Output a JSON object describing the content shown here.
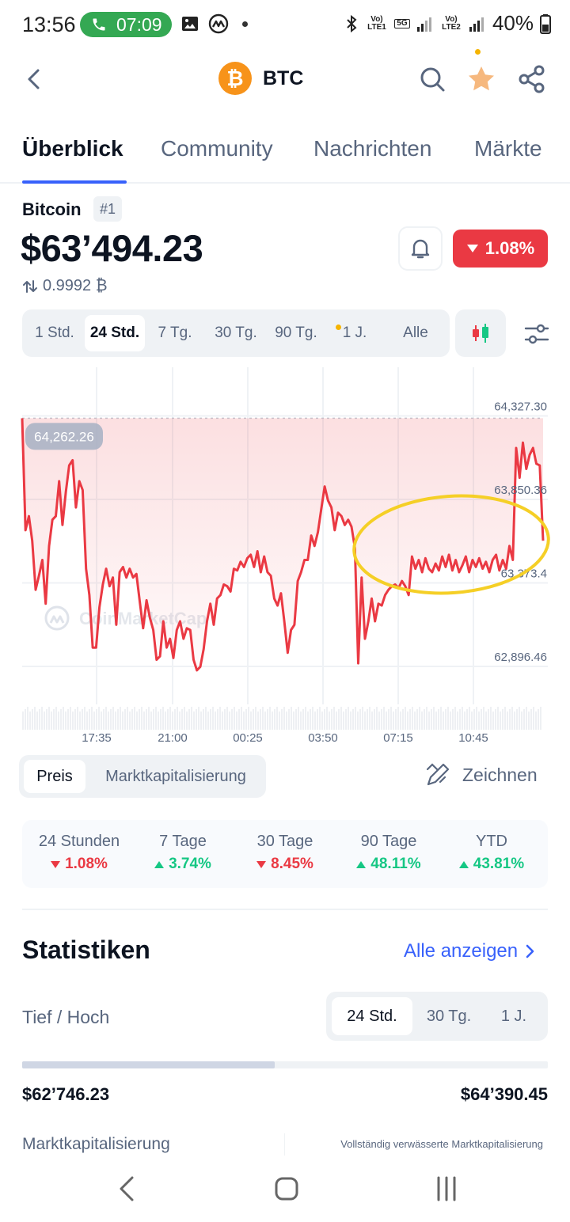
{
  "status_bar": {
    "time": "13:56",
    "call_timer": "07:09",
    "battery": "40%",
    "net1": "Vo) LTE1",
    "net2": "Vo) LTE2",
    "net_5g": "5G"
  },
  "header": {
    "symbol": "BTC",
    "logo_glyph": "₿",
    "icons": [
      "back-arrow-icon",
      "search-icon",
      "star-icon",
      "share-icon"
    ],
    "accent_color": "#f7931a"
  },
  "tabs": [
    {
      "label": "Überblick",
      "active": true
    },
    {
      "label": "Community",
      "active": false
    },
    {
      "label": "Nachrichten",
      "active": false
    },
    {
      "label": "Märkte",
      "active": false
    }
  ],
  "coin": {
    "name": "Bitcoin",
    "rank": "#1",
    "price": "$63’494.23",
    "btc_ratio": "0.9992 ₿",
    "change_24h": "1.08%",
    "change_color": "#ea3943"
  },
  "ranges": [
    {
      "label": "1 Std.",
      "active": false
    },
    {
      "label": "24 Std.",
      "active": true
    },
    {
      "label": "7 Tg.",
      "active": false
    },
    {
      "label": "30 Tg.",
      "active": false
    },
    {
      "label": "90 Tg.",
      "active": false
    },
    {
      "label": "1 J.",
      "active": false,
      "dot": true
    },
    {
      "label": "Alle",
      "active": false
    }
  ],
  "chart_data": {
    "type": "line",
    "y_ticks": [
      "64,327.30",
      "63,850.36",
      "63,373.4",
      "62,896.46"
    ],
    "y_tick_values": [
      64327.3,
      63850.36,
      63373.42,
      62896.46
    ],
    "x_ticks": [
      "17:35",
      "21:00",
      "00:25",
      "03:50",
      "07:15",
      "10:45"
    ],
    "ylim": [
      62580,
      64560
    ],
    "start_label": "64,262.26",
    "line_color": "#ea3943",
    "highlight_color": "#f5cf26",
    "watermark": "CoinMarketCap",
    "series": [
      {
        "values": [
          64260,
          63620,
          63700,
          63560,
          63280,
          63360,
          63450,
          63200,
          63530,
          63680,
          63700,
          63900,
          63650,
          63840,
          63990,
          64020,
          63750,
          63900,
          63850,
          63400,
          63250,
          62950,
          62950,
          63180,
          63310,
          63400,
          63300,
          63350,
          63080,
          63380,
          63410,
          63350,
          63400,
          63350,
          63370,
          63210,
          63060,
          63220,
          63120,
          63050,
          62880,
          62900,
          63100,
          62950,
          63000,
          62890,
          63050,
          63100,
          63000,
          63060,
          63050,
          62880,
          62820,
          62840,
          62940,
          63100,
          63200,
          63080,
          63230,
          63250,
          63310,
          63300,
          63270,
          63400,
          63390,
          63440,
          63410,
          63460,
          63480,
          63410,
          63500,
          63380,
          63470,
          63380,
          63360,
          63230,
          63190,
          63260,
          63100,
          62920,
          63050,
          63080,
          63330,
          63380,
          63450,
          63450,
          63590,
          63530,
          63610,
          63740,
          63870,
          63790,
          63750,
          63620,
          63720,
          63700,
          63650,
          63680,
          63640,
          63520,
          62860,
          63350,
          63000,
          63100,
          63230,
          63100,
          63200,
          63190,
          63250,
          63280,
          63300,
          63310,
          63290,
          63330,
          63300,
          63250,
          63470,
          63400,
          63450,
          63380,
          63460,
          63400,
          63380,
          63430,
          63390,
          63470,
          63410,
          63480,
          63390,
          63450,
          63380,
          63420,
          63470,
          63380,
          63450,
          63410,
          63460,
          63400,
          63440,
          63380,
          63450,
          63480,
          63390,
          63450,
          63400,
          63530,
          63450,
          64090,
          63920,
          64120,
          63970,
          64050,
          64090,
          64000,
          63990,
          63560
        ]
      }
    ]
  },
  "chart_type": [
    {
      "label": "Preis",
      "active": true
    },
    {
      "label": "Marktkapitalisierung",
      "active": false
    }
  ],
  "draw_label": "Zeichnen",
  "performance": [
    {
      "label": "24 Stunden",
      "value": "1.08%",
      "dir": "down"
    },
    {
      "label": "7 Tage",
      "value": "3.74%",
      "dir": "up"
    },
    {
      "label": "30 Tage",
      "value": "8.45%",
      "dir": "down"
    },
    {
      "label": "90 Tage",
      "value": "48.11%",
      "dir": "up"
    },
    {
      "label": "YTD",
      "value": "43.81%",
      "dir": "up"
    }
  ],
  "stats": {
    "title": "Statistiken",
    "show_all": "Alle anzeigen",
    "low_high_label": "Tief / Hoch",
    "periods": [
      {
        "label": "24 Std.",
        "active": true
      },
      {
        "label": "30 Tg.",
        "active": false
      },
      {
        "label": "1 J.",
        "active": false
      }
    ],
    "low": "$62’746.23",
    "high": "$64’390.45",
    "range_position": 0.48,
    "market_cap_label": "Marktkapitalisierung",
    "fdv_label": "Vollständig verwässerte Marktkapitalisierung"
  }
}
